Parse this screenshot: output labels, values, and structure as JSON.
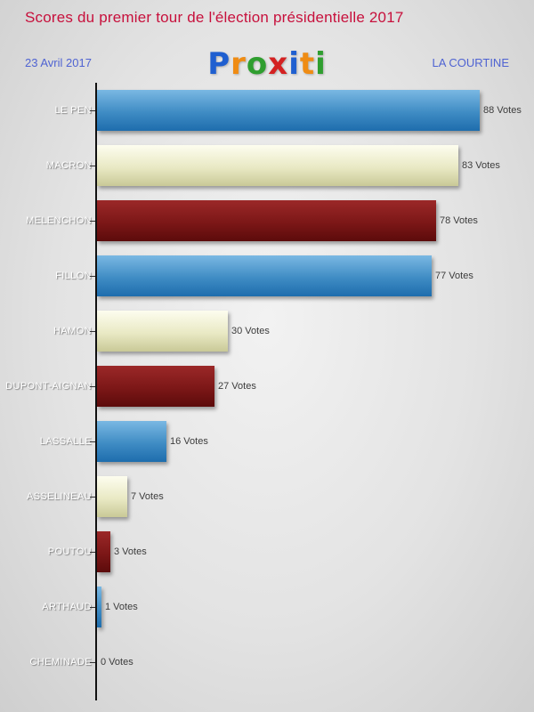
{
  "header": {
    "title": "Scores du premier tour de l'élection présidentielle 2017",
    "date": "23 Avril 2017",
    "location": "LA COURTINE",
    "logo_letters": [
      {
        "char": "P",
        "color": "#1f5fd0"
      },
      {
        "char": "r",
        "color": "#ef8c14"
      },
      {
        "char": "o",
        "color": "#2f9e2f"
      },
      {
        "char": "x",
        "color": "#d42121"
      },
      {
        "char": "i",
        "color": "#1f5fd0"
      },
      {
        "char": "t",
        "color": "#ef8c14"
      },
      {
        "char": "i",
        "color": "#2f9e2f"
      }
    ]
  },
  "chart_data": {
    "type": "bar",
    "orientation": "horizontal",
    "title": "Scores du premier tour de l'élection présidentielle 2017",
    "categories": [
      "LE PEN",
      "MACRON",
      "MELENCHON",
      "FILLON",
      "HAMON",
      "DUPONT-AIGNAN",
      "LASSALLE",
      "ASSELINEAU",
      "POUTOU",
      "ARTHAUD",
      "CHEMINADE"
    ],
    "values": [
      88,
      83,
      78,
      77,
      30,
      27,
      16,
      7,
      3,
      1,
      0
    ],
    "value_suffix": " Votes",
    "xlim": [
      0,
      88
    ],
    "grid": false,
    "legend": false,
    "palette": [
      {
        "name": "blue",
        "top": "#7ab8e3",
        "mid": "#3f8cc4",
        "bottom": "#1e6dad"
      },
      {
        "name": "cream",
        "top": "#fdfdef",
        "mid": "#e9e9c4",
        "bottom": "#c9c997"
      },
      {
        "name": "darkred",
        "top": "#9b2828",
        "mid": "#7c1717",
        "bottom": "#5c0b0b"
      }
    ]
  }
}
